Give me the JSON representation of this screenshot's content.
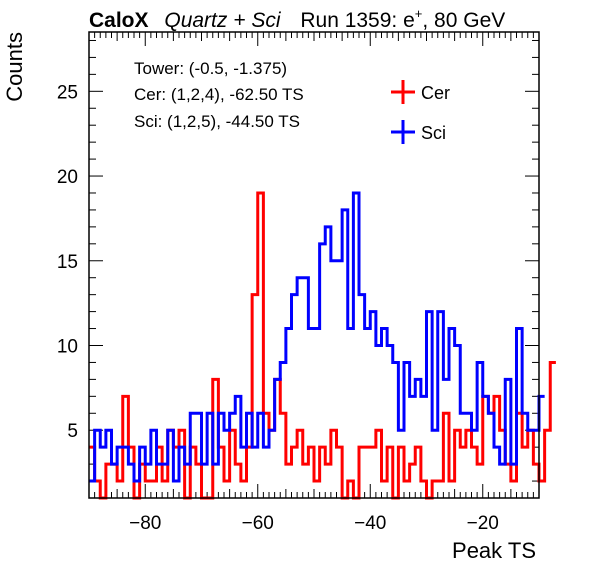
{
  "chart_data": {
    "type": "step",
    "title": {
      "brand": "CaloX",
      "subtitle": "Quartz + Sci",
      "run": "Run 1359: e",
      "run_superscript": "+",
      "run_suffix": ", 80 GeV"
    },
    "xlabel": "Peak TS",
    "ylabel": "Counts",
    "xlim": [
      -90,
      -10
    ],
    "ylim": [
      1,
      28.5
    ],
    "x_ticks": [
      -80,
      -60,
      -40,
      -20
    ],
    "x_tick_labels": [
      "−80",
      "−60",
      "−40",
      "−20"
    ],
    "y_ticks": [
      5,
      10,
      15,
      20,
      25
    ],
    "y_tick_labels": [
      "5",
      "10",
      "15",
      "20",
      "25"
    ],
    "bin_width": 1,
    "info_lines": [
      "Tower: (-0.5, -1.375)",
      "Cer: (1,2,4), -62.50 TS",
      "Sci: (1,2,5), -44.50 TS"
    ],
    "legend_position": "top-right",
    "series": [
      {
        "name": "Cer",
        "color": "#ff0000",
        "bin_start": -90,
        "values": [
          4,
          2,
          1,
          3,
          3,
          2,
          7,
          4,
          1,
          3,
          2,
          2,
          4,
          2,
          5,
          4,
          5,
          1,
          4,
          3,
          1,
          1,
          8,
          4,
          2,
          5,
          3,
          2,
          4,
          13,
          19,
          6,
          5,
          8,
          6,
          3,
          4,
          5,
          3,
          4,
          2,
          4,
          3,
          5,
          4,
          1,
          2,
          1,
          4,
          4,
          4,
          5,
          2,
          4,
          1,
          4,
          2,
          3,
          4,
          2,
          1,
          2,
          2,
          6,
          2,
          5,
          4,
          5,
          4,
          3,
          7,
          6,
          7,
          5,
          3,
          2,
          6,
          4,
          5,
          3,
          2,
          5,
          9
        ]
      },
      {
        "name": "Sci",
        "color": "#0000ff",
        "bin_start": -90,
        "values": [
          2,
          5,
          4,
          5,
          3,
          4,
          4,
          3,
          2,
          4,
          3,
          5,
          3,
          3,
          5,
          2,
          4,
          3,
          6,
          6,
          3,
          6,
          3,
          6,
          5,
          6,
          7,
          4,
          6,
          4,
          6,
          4,
          5,
          8,
          9,
          11,
          13,
          14,
          14,
          11,
          11,
          16,
          17,
          15,
          15,
          18,
          11,
          19,
          13,
          11,
          12,
          10,
          11,
          10,
          9,
          5,
          9,
          7,
          8,
          7,
          12,
          5,
          12,
          8,
          11,
          10,
          6,
          6,
          5,
          9,
          7,
          6,
          4,
          3,
          8,
          3,
          11,
          6,
          5,
          5,
          7
        ]
      }
    ]
  }
}
